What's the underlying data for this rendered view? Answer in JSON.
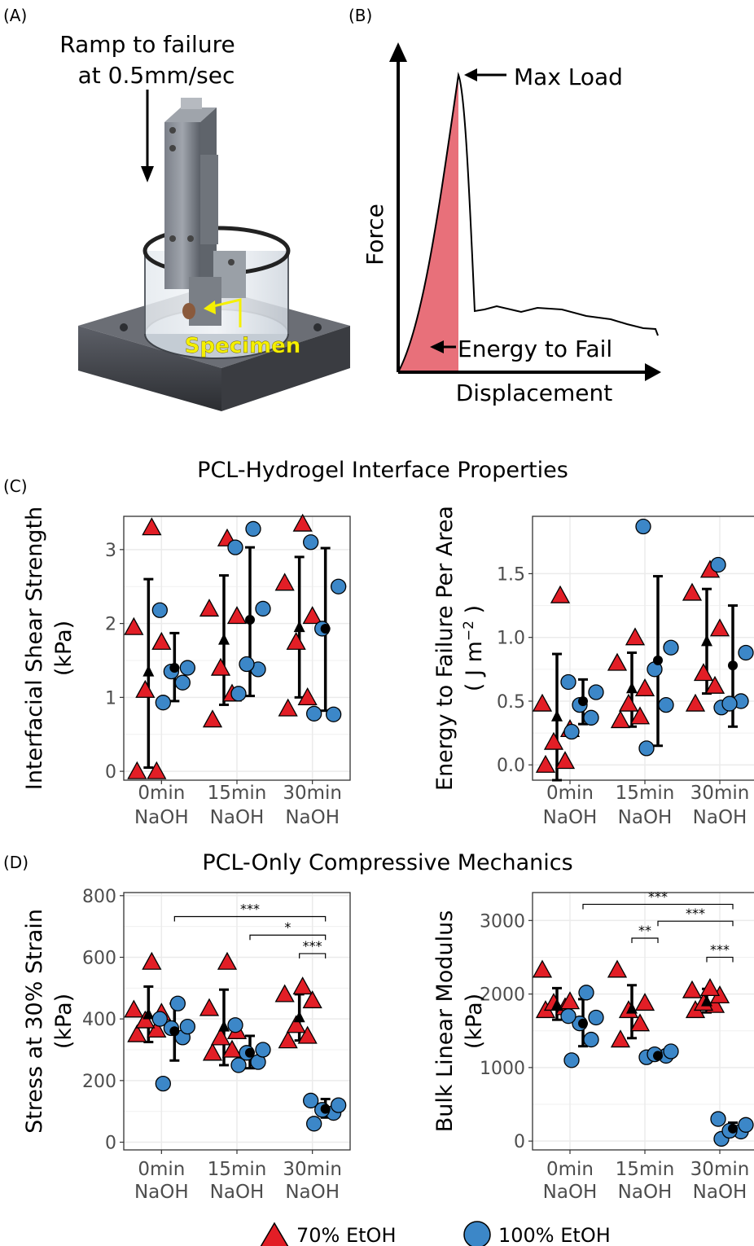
{
  "panel_labels": {
    "a": "(A)",
    "b": "(B)",
    "c": "(C)",
    "d": "(D)"
  },
  "panel_a": {
    "ramp_line1": "Ramp to failure",
    "ramp_line2": "at 0.5mm/sec",
    "specimen": "Specimen",
    "specimen_color": "#f5f000"
  },
  "panel_b": {
    "max_load": "Max Load",
    "energy": "Energy to Fail",
    "xlabel": "Displacement",
    "ylabel": "Force",
    "fill_color": "#e8707a"
  },
  "section_c_title": "PCL-Hydrogel Interface Properties",
  "section_d_title": "PCL-Only Compressive Mechanics",
  "legend": [
    {
      "label": "70% EtOH",
      "shape": "triangle",
      "color": "#e21e26"
    },
    {
      "label": "100% EtOH",
      "shape": "circle",
      "color": "#3c87c8"
    }
  ],
  "chart_data": [
    {
      "type": "scatter",
      "ylabel_line1": "Interfacial Shear Strength",
      "ylabel_line2": "(kPa)",
      "categories": [
        [
          "0min",
          "NaOH"
        ],
        [
          "15min",
          "NaOH"
        ],
        [
          "30min",
          "NaOH"
        ]
      ],
      "ylim": [
        -0.12,
        3.45
      ],
      "yticks": [
        0,
        1,
        2,
        3
      ],
      "grid": true,
      "series": [
        {
          "name": "70% EtOH",
          "points": [
            [
              [
                0.0,
                0.0,
                1.1,
                1.75,
                1.95,
                3.3
              ]
            ],
            [
              [
                0.7,
                1.05,
                1.4,
                2.1,
                2.2,
                3.15
              ]
            ],
            [
              [
                0.85,
                1.0,
                1.75,
                2.1,
                2.55,
                3.35
              ]
            ]
          ],
          "mean": [
            1.35,
            1.78,
            1.95
          ],
          "sd_low": [
            0.05,
            0.9,
            1.0
          ],
          "sd_high": [
            2.6,
            2.65,
            2.9
          ]
        },
        {
          "name": "100% EtOH",
          "points": [
            [
              [
                0.93,
                1.2,
                1.35,
                1.4,
                2.18
              ]
            ],
            [
              [
                1.05,
                1.38,
                1.45,
                2.2,
                3.03,
                3.28
              ]
            ],
            [
              [
                0.78,
                0.77,
                1.93,
                2.5,
                3.1
              ]
            ]
          ],
          "mean": [
            1.4,
            2.05,
            1.93
          ],
          "sd_low": [
            0.95,
            1.02,
            0.82
          ],
          "sd_high": [
            1.87,
            3.03,
            3.02
          ]
        }
      ]
    },
    {
      "type": "scatter",
      "ylabel_line1": "Energy to Failure Per Area",
      "ylabel_line2": "( J m",
      "ylabel_sup": "−2",
      "ylabel_close": " )",
      "categories": [
        [
          "0min",
          "NaOH"
        ],
        [
          "15min",
          "NaOH"
        ],
        [
          "30min",
          "NaOH"
        ]
      ],
      "ylim": [
        -0.12,
        1.95
      ],
      "yticks": [
        0.0,
        0.5,
        1.0,
        1.5
      ],
      "grid": true,
      "series": [
        {
          "name": "70% EtOH",
          "points": [
            [
              [
                0.0,
                0.03,
                0.18,
                0.28,
                0.48,
                1.33
              ]
            ],
            [
              [
                0.35,
                0.38,
                0.48,
                0.6,
                0.8,
                1.0
              ]
            ],
            [
              [
                0.48,
                0.62,
                0.72,
                1.07,
                1.35,
                1.53
              ]
            ]
          ],
          "mean": [
            0.38,
            0.6,
            0.97
          ],
          "sd_low": [
            -0.12,
            0.3,
            0.56
          ],
          "sd_high": [
            0.87,
            0.88,
            1.38
          ]
        },
        {
          "name": "100% EtOH",
          "points": [
            [
              [
                0.26,
                0.37,
                0.47,
                0.57,
                0.65
              ]
            ],
            [
              [
                0.13,
                0.47,
                0.75,
                0.92,
                1.87
              ]
            ],
            [
              [
                0.45,
                0.5,
                0.48,
                0.88,
                1.57
              ]
            ]
          ],
          "mean": [
            0.5,
            0.82,
            0.78
          ],
          "sd_low": [
            0.32,
            0.15,
            0.3
          ],
          "sd_high": [
            0.67,
            1.48,
            1.25
          ]
        }
      ]
    },
    {
      "type": "scatter",
      "ylabel_line1": "Stress at 30% Strain",
      "ylabel_line2": "(kPa)",
      "categories": [
        [
          "0min",
          "NaOH"
        ],
        [
          "15min",
          "NaOH"
        ],
        [
          "30min",
          "NaOH"
        ]
      ],
      "ylim": [
        -25,
        810
      ],
      "yticks": [
        0,
        200,
        400,
        600,
        800
      ],
      "grid": true,
      "series": [
        {
          "name": "70% EtOH",
          "points": [
            [
              [
                350,
                365,
                395,
                420,
                430,
                585
              ]
            ],
            [
              [
                290,
                300,
                340,
                360,
                435,
                585
              ]
            ],
            [
              [
                330,
                345,
                380,
                460,
                480,
                505
              ]
            ]
          ],
          "mean": [
            415,
            375,
            405
          ],
          "sd_low": [
            325,
            250,
            330
          ],
          "sd_high": [
            505,
            495,
            480
          ]
        },
        {
          "name": "100% EtOH",
          "points": [
            [
              [
                190,
                340,
                370,
                375,
                400,
                450
              ]
            ],
            [
              [
                250,
                260,
                290,
                300,
                380
              ]
            ],
            [
              [
                60,
                95,
                105,
                120,
                135
              ]
            ]
          ],
          "mean": [
            360,
            290,
            108
          ],
          "sd_low": [
            265,
            240,
            80
          ],
          "sd_high": [
            450,
            345,
            140
          ]
        }
      ],
      "brackets": [
        {
          "from": 0,
          "to": 2,
          "y": 732,
          "label": "***"
        },
        {
          "from": 1,
          "to": 2,
          "y": 672,
          "label": "*"
        },
        {
          "from": 2,
          "to": 2,
          "y": 612,
          "label": "***"
        }
      ]
    },
    {
      "type": "scatter",
      "ylabel_line1": "Bulk Linear Modulus",
      "ylabel_line2": "(kPa)",
      "categories": [
        [
          "0min",
          "NaOH"
        ],
        [
          "15min",
          "NaOH"
        ],
        [
          "30min",
          "NaOH"
        ]
      ],
      "ylim": [
        -120,
        3380
      ],
      "yticks": [
        0,
        1000,
        2000,
        3000
      ],
      "grid": true,
      "series": [
        {
          "name": "70% EtOH",
          "points": [
            [
              [
                1780,
                1820,
                1880,
                1900,
                2330
              ]
            ],
            [
              [
                1380,
                1600,
                1780,
                1880,
                2330
              ]
            ],
            [
              [
                1780,
                1850,
                1880,
                1980,
                2050,
                2080
              ]
            ]
          ],
          "mean": [
            1850,
            1800,
            1900
          ],
          "sd_low": [
            1650,
            1400,
            1750
          ],
          "sd_high": [
            2080,
            2120,
            2070
          ]
        },
        {
          "name": "100% EtOH",
          "points": [
            [
              [
                1100,
                1380,
                1600,
                1680,
                1700,
                2020
              ]
            ],
            [
              [
                1140,
                1160,
                1180,
                1220
              ]
            ],
            [
              [
                30,
                130,
                140,
                220,
                300
              ]
            ]
          ],
          "mean": [
            1600,
            1160,
            170
          ],
          "sd_low": [
            1290,
            1120,
            90
          ],
          "sd_high": [
            1930,
            1200,
            250
          ]
        }
      ],
      "brackets": [
        {
          "from": 0,
          "to": 2,
          "y": 3220,
          "label": "***"
        },
        {
          "from": 1,
          "to": 2,
          "y": 2990,
          "label": "***"
        },
        {
          "from": 1,
          "to": 1,
          "y": 2760,
          "label": "**"
        },
        {
          "from": 2,
          "to": 2,
          "y": 2500,
          "label": "***"
        }
      ]
    }
  ]
}
